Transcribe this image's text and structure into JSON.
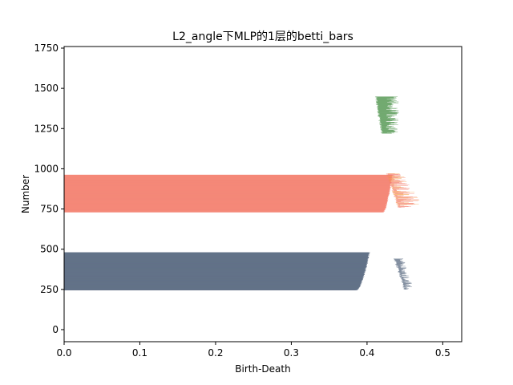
{
  "chart_data": {
    "type": "bar",
    "orientation": "horizontal",
    "title": "L2_angle下MLP的1层的betti_bars",
    "xlabel": "Birth-Death",
    "ylabel": "Number",
    "xlim": [
      0.0,
      0.525
    ],
    "ylim": [
      -75,
      1760
    ],
    "xticks": [
      0.0,
      0.1,
      0.2,
      0.3,
      0.4,
      0.5
    ],
    "xtick_labels": [
      "0.0",
      "0.1",
      "0.2",
      "0.3",
      "0.4",
      "0.5"
    ],
    "yticks": [
      0,
      250,
      500,
      750,
      1000,
      1250,
      1500,
      1750
    ],
    "ytick_labels": [
      "0",
      "250",
      "500",
      "750",
      "1000",
      "1250",
      "1500",
      "1750"
    ],
    "grid": false,
    "colors": {
      "bars_dim0": "#56677f",
      "bars_dim1": "#f47f6e",
      "bars_dim1_accent": "#f5a04a",
      "bars_dim2": "#3e8a3c"
    },
    "series": [
      {
        "color_key": "bars_dim0",
        "y_start": 245,
        "y_end": 480,
        "birth": 0.0,
        "death_at_start": 0.385,
        "death_at_end": 0.402,
        "outliers": {
          "y_start": 250,
          "y_end": 440,
          "birth_min": 0.435,
          "birth_max": 0.448,
          "death_min": 0.443,
          "death_max": 0.462
        }
      },
      {
        "color_key": "bars_dim1",
        "y_start": 730,
        "y_end": 962,
        "birth": 0.0,
        "death_at_start": 0.42,
        "death_at_end": 0.432,
        "outliers": {
          "y_start": 760,
          "y_end": 970,
          "birth_min": 0.425,
          "birth_max": 0.44,
          "death_min": 0.435,
          "death_max": 0.478
        }
      },
      {
        "color_key": "bars_dim2",
        "y_start": 1220,
        "y_end": 1448,
        "birth_at_start": 0.418,
        "birth_at_end": 0.41,
        "death_min": 0.425,
        "death_max": 0.442
      }
    ]
  }
}
